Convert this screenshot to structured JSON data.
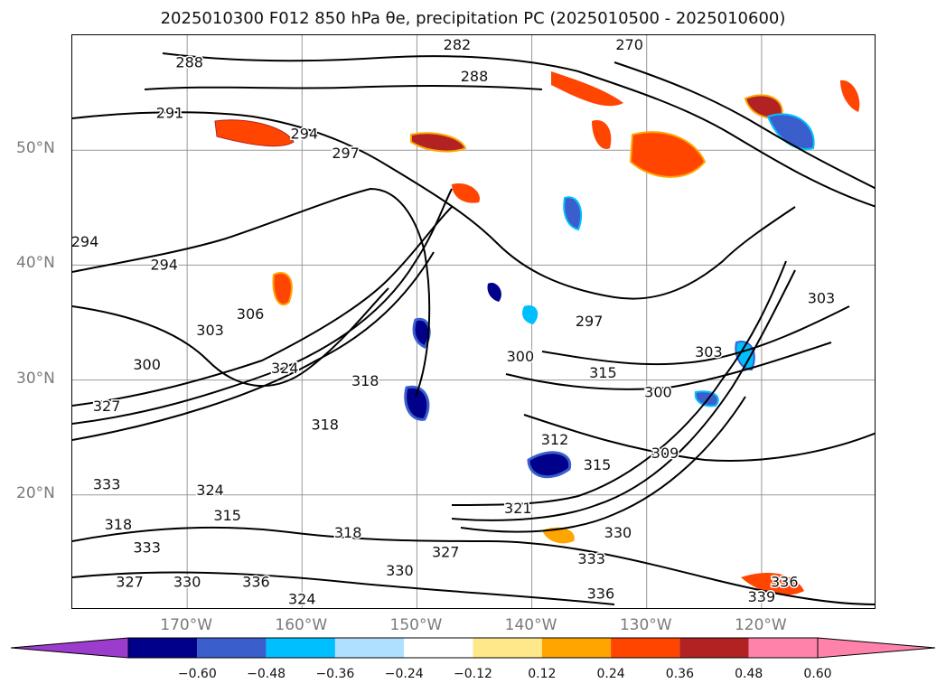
{
  "map": {
    "title": "2025010300 F012 850 hPa θe, precipitation PC (2025010500 - 2025010600)",
    "projection": "plate-carree",
    "extent": {
      "lon_min": -180,
      "lon_max": -110,
      "lat_min": 10,
      "lat_max": 60
    },
    "lat_ticks": [
      {
        "value": 20,
        "label": "20°N"
      },
      {
        "value": 30,
        "label": "30°N"
      },
      {
        "value": 40,
        "label": "40°N"
      },
      {
        "value": 50,
        "label": "50°N"
      }
    ],
    "lon_ticks": [
      {
        "value": -170,
        "label": "170°W"
      },
      {
        "value": -160,
        "label": "160°W"
      },
      {
        "value": -150,
        "label": "150°W"
      },
      {
        "value": -140,
        "label": "140°W"
      },
      {
        "value": -130,
        "label": "130°W"
      },
      {
        "value": -120,
        "label": "120°W"
      }
    ],
    "gridlines": true,
    "contour_labels": [
      {
        "text": "282",
        "lon": -146.5,
        "lat": 59.3
      },
      {
        "text": "270",
        "lon": -131.5,
        "lat": 59.0
      },
      {
        "text": "288",
        "lon": -169.8,
        "lat": 57.2
      },
      {
        "text": "288",
        "lon": -145.0,
        "lat": 56.0
      },
      {
        "text": "291",
        "lon": -171.5,
        "lat": 52.8
      },
      {
        "text": "294",
        "lon": -159.8,
        "lat": 51.0
      },
      {
        "text": "297",
        "lon": -156.2,
        "lat": 49.3
      },
      {
        "text": "294",
        "lon": -180.0,
        "lat": 41.6
      },
      {
        "text": "294",
        "lon": -172.0,
        "lat": 39.6
      },
      {
        "text": "303",
        "lon": -168.0,
        "lat": 33.9
      },
      {
        "text": "306",
        "lon": -164.5,
        "lat": 35.3
      },
      {
        "text": "300",
        "lon": -173.5,
        "lat": 30.9
      },
      {
        "text": "327",
        "lon": -177.0,
        "lat": 27.3
      },
      {
        "text": "324",
        "lon": -161.5,
        "lat": 30.6
      },
      {
        "text": "318",
        "lon": -154.5,
        "lat": 29.5
      },
      {
        "text": "318",
        "lon": -158.0,
        "lat": 25.7
      },
      {
        "text": "300",
        "lon": -141.0,
        "lat": 31.6
      },
      {
        "text": "297",
        "lon": -135.0,
        "lat": 34.7
      },
      {
        "text": "315",
        "lon": -133.8,
        "lat": 30.2
      },
      {
        "text": "303",
        "lon": -124.6,
        "lat": 32.0
      },
      {
        "text": "303",
        "lon": -114.8,
        "lat": 36.7
      },
      {
        "text": "300",
        "lon": -129.0,
        "lat": 28.5
      },
      {
        "text": "312",
        "lon": -138.0,
        "lat": 24.4
      },
      {
        "text": "315",
        "lon": -134.3,
        "lat": 22.2
      },
      {
        "text": "309",
        "lon": -128.4,
        "lat": 23.2
      },
      {
        "text": "321",
        "lon": -141.2,
        "lat": 18.4
      },
      {
        "text": "330",
        "lon": -132.5,
        "lat": 16.3
      },
      {
        "text": "333",
        "lon": -134.8,
        "lat": 14.0
      },
      {
        "text": "336",
        "lon": -134.0,
        "lat": 11.0
      },
      {
        "text": "339",
        "lon": -120.0,
        "lat": 10.7
      },
      {
        "text": "336",
        "lon": -118.0,
        "lat": 12.0
      },
      {
        "text": "327",
        "lon": -147.5,
        "lat": 14.6
      },
      {
        "text": "330",
        "lon": -151.5,
        "lat": 13.0
      },
      {
        "text": "318",
        "lon": -156.0,
        "lat": 16.3
      },
      {
        "text": "333",
        "lon": -173.5,
        "lat": 15.0
      },
      {
        "text": "327",
        "lon": -175.0,
        "lat": 12.0
      },
      {
        "text": "330",
        "lon": -170.0,
        "lat": 12.0
      },
      {
        "text": "336",
        "lon": -164.0,
        "lat": 12.0
      },
      {
        "text": "324",
        "lon": -160.0,
        "lat": 10.5
      },
      {
        "text": "333",
        "lon": -177.0,
        "lat": 20.5
      },
      {
        "text": "318",
        "lon": -176.0,
        "lat": 17.0
      },
      {
        "text": "315",
        "lon": -166.5,
        "lat": 17.8
      },
      {
        "text": "324",
        "lon": -168.0,
        "lat": 20.0
      }
    ]
  },
  "colorbar": {
    "ticks": [
      "−0.60",
      "−0.48",
      "−0.36",
      "−0.24",
      "−0.12",
      "0.12",
      "0.24",
      "0.36",
      "0.48",
      "0.60"
    ],
    "colors": {
      "under": "#9b3ccc",
      "bins": [
        "#00008b",
        "#3a5fcd",
        "#00bfff",
        "#b0e0ff",
        "#ffffff",
        "#ffe88a",
        "#ffa500",
        "#ff4500",
        "#b22222",
        "#ff82ab"
      ],
      "over": "#ff82ab"
    }
  }
}
